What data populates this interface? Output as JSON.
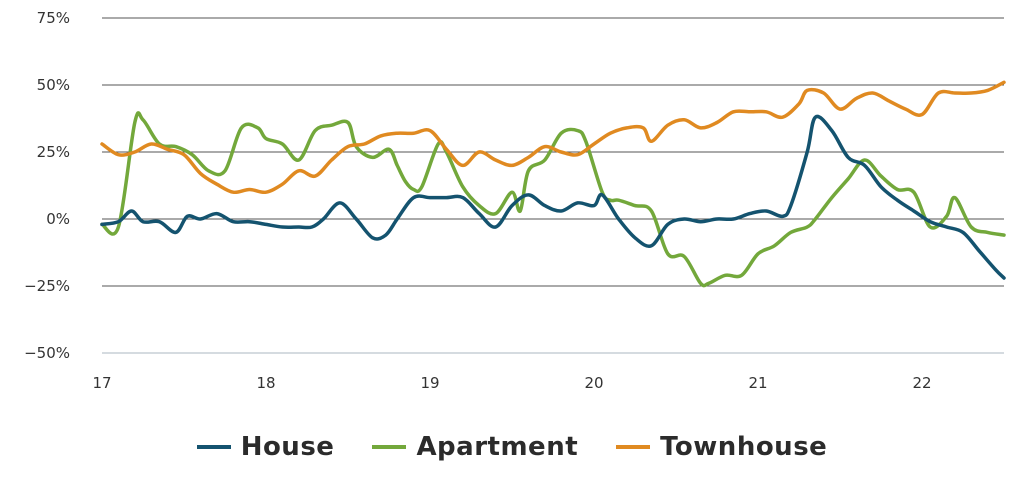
{
  "chart_data": {
    "type": "line",
    "title": "",
    "xlabel": "",
    "ylabel": "",
    "xlim": [
      17,
      22.5
    ],
    "ylim": [
      -50,
      75
    ],
    "x_ticks": [
      17,
      18,
      19,
      20,
      21,
      22
    ],
    "x_tick_labels": [
      "17",
      "18",
      "19",
      "20",
      "21",
      "22"
    ],
    "y_ticks": [
      75,
      50,
      25,
      0,
      -25,
      -50
    ],
    "y_tick_labels": [
      "75%",
      "50%",
      "25%",
      "0%",
      "−25%",
      "−50%"
    ],
    "grid": "horizontal",
    "legend_position": "bottom-center",
    "colors": {
      "House": "#14536f",
      "Apartment": "#73a83b",
      "Townhouse": "#e08a21",
      "grid": "#555555",
      "axis": "#c7cfd6"
    },
    "series": [
      {
        "name": "House",
        "x": [
          17,
          17.1,
          17.18,
          17.25,
          17.35,
          17.45,
          17.52,
          17.6,
          17.7,
          17.8,
          17.9,
          18,
          18.1,
          18.2,
          18.28,
          18.35,
          18.45,
          18.55,
          18.65,
          18.73,
          18.8,
          18.9,
          19,
          19.1,
          19.2,
          19.3,
          19.4,
          19.5,
          19.6,
          19.7,
          19.8,
          19.9,
          20,
          20.05,
          20.15,
          20.25,
          20.35,
          20.45,
          20.55,
          20.65,
          20.75,
          20.85,
          20.95,
          21.05,
          21.15,
          21.2,
          21.3,
          21.35,
          21.45,
          21.55,
          21.65,
          21.75,
          21.85,
          21.95,
          22.05,
          22.15,
          22.25,
          22.35,
          22.45,
          22.5
        ],
        "y": [
          -2,
          -1,
          3,
          -1,
          -1,
          -5,
          1,
          0,
          2,
          -1,
          -1,
          -2,
          -3,
          -3,
          -3,
          0,
          6,
          0,
          -7,
          -6,
          0,
          8,
          8,
          8,
          8,
          2,
          -3,
          5,
          9,
          5,
          3,
          6,
          5,
          9,
          0,
          -7,
          -10,
          -2,
          0,
          -1,
          0,
          0,
          2,
          3,
          1,
          5,
          25,
          38,
          33,
          23,
          20,
          12,
          7,
          3,
          -1,
          -3,
          -5,
          -12,
          -19,
          -22
        ]
      },
      {
        "name": "Apartment",
        "x": [
          17,
          17.1,
          17.2,
          17.25,
          17.35,
          17.45,
          17.55,
          17.65,
          17.75,
          17.85,
          17.95,
          18,
          18.1,
          18.2,
          18.3,
          18.4,
          18.5,
          18.55,
          18.65,
          18.75,
          18.8,
          18.85,
          18.9,
          18.95,
          19.05,
          19.1,
          19.2,
          19.3,
          19.4,
          19.5,
          19.55,
          19.6,
          19.7,
          19.8,
          19.9,
          19.95,
          20.05,
          20.1,
          20.15,
          20.25,
          20.35,
          20.45,
          20.55,
          20.65,
          20.7,
          20.8,
          20.9,
          21,
          21.1,
          21.2,
          21.3,
          21.35,
          21.45,
          21.55,
          21.65,
          21.75,
          21.85,
          21.95,
          22.05,
          22.15,
          22.2,
          22.3,
          22.4,
          22.5
        ],
        "y": [
          -2,
          -3,
          36,
          37,
          28,
          27,
          24,
          18,
          18,
          34,
          34,
          30,
          28,
          22,
          33,
          35,
          36,
          27,
          23,
          26,
          20,
          14,
          11,
          12,
          28,
          25,
          12,
          5,
          2,
          10,
          3,
          18,
          22,
          32,
          33,
          29,
          10,
          7,
          7,
          5,
          3,
          -13,
          -14,
          -24,
          -24,
          -21,
          -21,
          -13,
          -10,
          -5,
          -3,
          0,
          8,
          15,
          22,
          16,
          11,
          10,
          -3,
          1,
          8,
          -3,
          -5,
          -6
        ]
      },
      {
        "name": "Townhouse",
        "x": [
          17,
          17.1,
          17.2,
          17.3,
          17.4,
          17.5,
          17.6,
          17.7,
          17.8,
          17.9,
          18,
          18.1,
          18.2,
          18.3,
          18.4,
          18.5,
          18.6,
          18.7,
          18.8,
          18.9,
          19,
          19.1,
          19.2,
          19.3,
          19.4,
          19.5,
          19.6,
          19.7,
          19.8,
          19.9,
          20,
          20.1,
          20.2,
          20.3,
          20.35,
          20.45,
          20.55,
          20.65,
          20.75,
          20.85,
          20.95,
          21.05,
          21.15,
          21.25,
          21.3,
          21.4,
          21.5,
          21.6,
          21.7,
          21.8,
          21.9,
          22,
          22.1,
          22.2,
          22.3,
          22.4,
          22.5
        ],
        "y": [
          28,
          24,
          25,
          28,
          26,
          24,
          17,
          13,
          10,
          11,
          10,
          13,
          18,
          16,
          22,
          27,
          28,
          31,
          32,
          32,
          33,
          26,
          20,
          25,
          22,
          20,
          23,
          27,
          25,
          24,
          28,
          32,
          34,
          34,
          29,
          35,
          37,
          34,
          36,
          40,
          40,
          40,
          38,
          43,
          48,
          47,
          41,
          45,
          47,
          44,
          41,
          39,
          47,
          47,
          47,
          48,
          51
        ]
      }
    ]
  }
}
